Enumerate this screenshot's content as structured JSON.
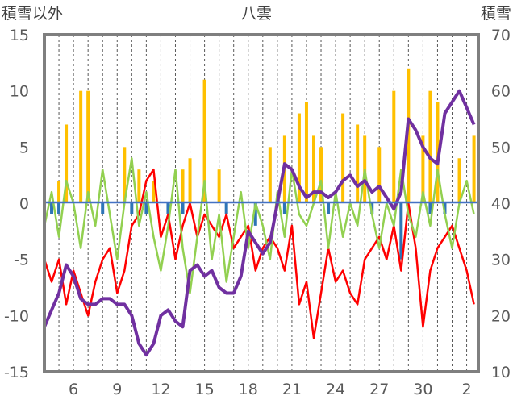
{
  "chart_data": {
    "type": "line",
    "title": "八雲",
    "ylabel_left": "積雪以外",
    "ylabel_right": "積雪",
    "x_ticks": [
      "6",
      "9",
      "12",
      "15",
      "18",
      "21",
      "24",
      "27",
      "30",
      "2"
    ],
    "y_left_ticks": [
      "15",
      "10",
      "5",
      "0",
      "-5",
      "-10",
      "-15"
    ],
    "y_right_ticks": [
      "70",
      "60",
      "50",
      "40",
      "30",
      "20",
      "10"
    ],
    "ylim_left": [
      -15,
      15
    ],
    "ylim_right": [
      10,
      70
    ],
    "xlim": [
      4,
      33.8
    ],
    "grid": "vertical-dashed",
    "colors": {
      "precipitation": "#ffc000",
      "negative_bars": "#2e75b6",
      "temperature_red": "#ff0000",
      "temperature_green": "#92d050",
      "snow_depth": "#7030a0",
      "zero_line": "#4472c4",
      "frame": "#7f7f7f"
    },
    "series": [
      {
        "axis": "left",
        "x": [
          4.0,
          4.5,
          5.0,
          5.5,
          6.0,
          6.5,
          7.0,
          7.5,
          8.0,
          8.5,
          9.0,
          9.5,
          10.0,
          10.5,
          11.0,
          11.5,
          12.0,
          12.5,
          13.0,
          13.5,
          14.0,
          14.5,
          15.0,
          15.5,
          16.0,
          16.5,
          17.0,
          17.5,
          18.0,
          18.5,
          19.0,
          19.5,
          20.0,
          20.5,
          21.0,
          21.5,
          22.0,
          22.5,
          23.0,
          23.5,
          24.0,
          24.5,
          25.0,
          25.5,
          26.0,
          26.5,
          27.0,
          27.5,
          28.0,
          28.5,
          29.0,
          29.5,
          30.0,
          30.5,
          31.0,
          31.5,
          32.0,
          32.5,
          33.0,
          33.5
        ],
        "y": [
          -5,
          -7,
          -5,
          -9,
          -6,
          -8,
          -10,
          -7,
          -5,
          -4,
          -8,
          -6,
          -2,
          -1,
          2,
          3,
          -3,
          -1,
          -5,
          -2,
          0,
          -3,
          -1,
          -2,
          -3,
          -1,
          -4,
          -3,
          -2,
          -6,
          -4,
          -3,
          -4,
          -6,
          -2,
          -9,
          -7,
          -12,
          -8,
          -4,
          -7,
          -6,
          -8,
          -9,
          -5,
          -4,
          -3,
          -5,
          -2,
          -6,
          0,
          -4,
          -11,
          -6,
          -4,
          -3,
          -2,
          -4,
          -6,
          -9
        ],
        "color": "#ff0000"
      },
      {
        "axis": "left",
        "x": [
          4.0,
          4.5,
          5.0,
          5.5,
          6.0,
          6.5,
          7.0,
          7.5,
          8.0,
          8.5,
          9.0,
          9.5,
          10.0,
          10.5,
          11.0,
          11.5,
          12.0,
          12.5,
          13.0,
          13.5,
          14.0,
          14.5,
          15.0,
          15.5,
          16.0,
          16.5,
          17.0,
          17.5,
          18.0,
          18.5,
          19.0,
          19.5,
          20.0,
          20.5,
          21.0,
          21.5,
          22.0,
          22.5,
          23.0,
          23.5,
          24.0,
          24.5,
          25.0,
          25.5,
          26.0,
          26.5,
          27.0,
          27.5,
          28.0,
          28.5,
          29.0,
          29.5,
          30.0,
          30.5,
          31.0,
          31.5,
          32.0,
          32.5,
          33.0,
          33.5
        ],
        "y": [
          -2,
          1,
          -3,
          2,
          0,
          -4,
          1,
          -2,
          3,
          -1,
          -5,
          0,
          4,
          -2,
          1,
          -3,
          -6,
          -2,
          3,
          -4,
          -8,
          -3,
          2,
          -5,
          -1,
          -7,
          -3,
          1,
          -4,
          0,
          -2,
          -5,
          1,
          -3,
          3,
          -1,
          -2,
          0,
          2,
          -4,
          1,
          -3,
          0,
          -2,
          3,
          -1,
          -4,
          0,
          -2,
          3,
          -1,
          -3,
          1,
          -2,
          3,
          -1,
          -4,
          0,
          2,
          -1
        ],
        "color": "#92d050"
      },
      {
        "axis": "right",
        "x": [
          4.0,
          4.5,
          5.0,
          5.5,
          6.0,
          6.5,
          7.0,
          7.5,
          8.0,
          8.5,
          9.0,
          9.5,
          10.0,
          10.5,
          11.0,
          11.5,
          12.0,
          12.5,
          13.0,
          13.5,
          14.0,
          14.5,
          15.0,
          15.5,
          16.0,
          16.5,
          17.0,
          17.5,
          18.0,
          18.5,
          19.0,
          19.5,
          20.0,
          20.5,
          21.0,
          21.5,
          22.0,
          22.5,
          23.0,
          23.5,
          24.0,
          24.5,
          25.0,
          25.5,
          26.0,
          26.5,
          27.0,
          27.5,
          28.0,
          28.5,
          29.0,
          29.5,
          30.0,
          30.5,
          31.0,
          31.5,
          32.0,
          32.5,
          33.0,
          33.5
        ],
        "y": [
          18,
          21,
          24,
          29,
          27,
          23,
          22,
          22,
          23,
          23,
          22,
          22,
          20,
          15,
          13,
          15,
          20,
          21,
          19,
          18,
          28,
          29,
          27,
          28,
          25,
          24,
          24,
          27,
          35,
          33,
          31,
          33,
          40,
          47,
          46,
          43,
          41,
          42,
          42,
          41,
          42,
          44,
          45,
          43,
          44,
          42,
          43,
          41,
          39,
          42,
          55,
          53,
          50,
          48,
          47,
          56,
          58,
          60,
          57,
          54
        ],
        "color": "#7030a0"
      },
      {
        "axis": "left",
        "type": "bar",
        "x": [
          5.0,
          5.5,
          6.5,
          7.0,
          9.5,
          10.5,
          11.5,
          13.5,
          14.0,
          15.0,
          16.0,
          19.5,
          20.5,
          21.5,
          22.0,
          22.5,
          23.0,
          24.5,
          25.5,
          26.0,
          27.0,
          28.0,
          29.0,
          30.0,
          30.5,
          31.0,
          32.5,
          33.5
        ],
        "y": [
          2,
          7,
          10,
          10,
          5,
          3,
          2,
          3,
          4,
          11,
          3,
          5,
          6,
          8,
          9,
          6,
          5,
          8,
          7,
          6,
          5,
          10,
          12,
          6,
          10,
          9,
          4,
          6
        ],
        "color": "#ffc000"
      },
      {
        "axis": "left",
        "type": "bar",
        "x": [
          4.5,
          5.0,
          8.0,
          10.0,
          11.0,
          12.5,
          13.5,
          16.5,
          18.5,
          20.5,
          23.5,
          26.5,
          28.5,
          30.5,
          31.5
        ],
        "y": [
          -1,
          -1,
          -1,
          -1,
          -1,
          -1,
          -1,
          -1,
          -2,
          -1,
          -1,
          -1,
          -5,
          -1,
          -1
        ],
        "color": "#2e75b6"
      }
    ]
  }
}
